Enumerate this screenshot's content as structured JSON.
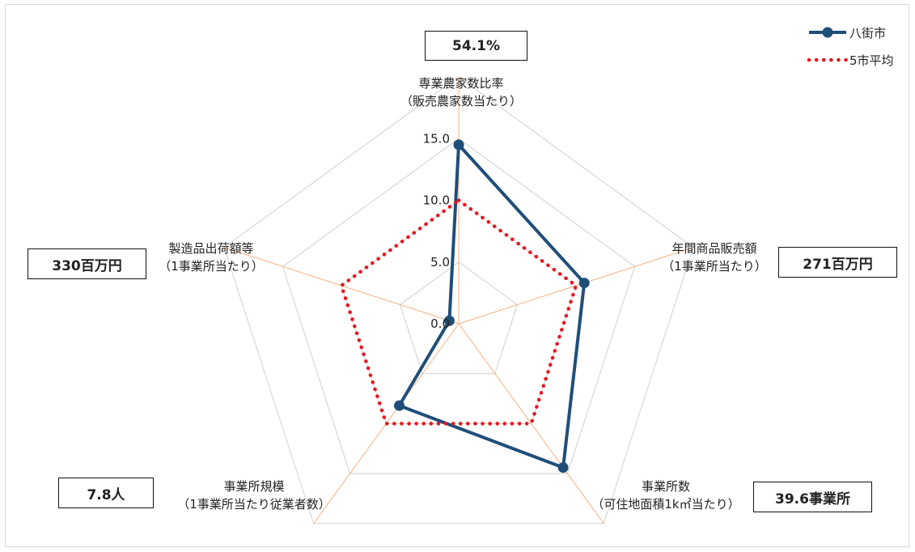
{
  "chart_data": {
    "type": "radar",
    "axes": [
      {
        "line1": "専業農家数比率",
        "line2": "（販売農家数当たり）",
        "value_box": "54.1%"
      },
      {
        "line1": "年間商品販売額",
        "line2": "（1事業所当たり）",
        "value_box": "271百万円"
      },
      {
        "line1": "事業所数",
        "line2": "（可住地面積1k㎡当たり）",
        "value_box": "39.6事業所"
      },
      {
        "line1": "事業所規模",
        "line2": "（1事業所当たり従業者数）",
        "value_box": "7.8人"
      },
      {
        "line1": "製造品出荷額等",
        "line2": "（1事業所当たり）",
        "value_box": "330百万円"
      }
    ],
    "rlim": [
      0,
      20
    ],
    "ticks": [
      0,
      5,
      10,
      15
    ],
    "tick_labels": [
      "0.0",
      "5.0",
      "10.0",
      "15.0"
    ],
    "series": [
      {
        "name": "八街市",
        "values": [
          14.5,
          10.7,
          14.4,
          8.2,
          0.8
        ],
        "color": "#1f4e79",
        "style": "solid-marker"
      },
      {
        "name": "5市平均",
        "values": [
          10.0,
          10.0,
          10.0,
          10.0,
          10.0
        ],
        "color": "#e8141c",
        "style": "dotted"
      }
    ],
    "legend_position": "top-right",
    "grid_color": "#d0d0d0",
    "spoke_color": "#f4b183"
  }
}
